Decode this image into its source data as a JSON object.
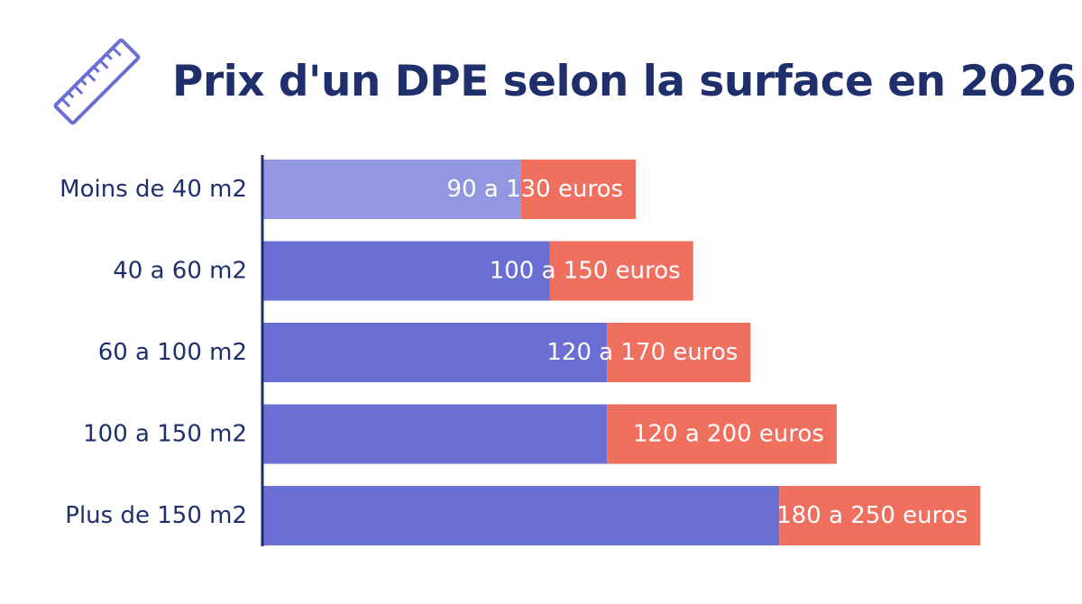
{
  "title": "Prix d'un DPE selon la surface en 2026",
  "icon": "ruler-icon",
  "colors": {
    "title": "#1f2f6b",
    "axis": "#1f2f6b",
    "label": "#1f2f6b",
    "min_bar": "#6b6fd4",
    "min_bar_first": "#9397e0",
    "range_bar": "#f07060",
    "value_text": "#ffffff"
  },
  "chart_data": {
    "type": "bar",
    "orientation": "horizontal",
    "stacked": true,
    "xlim": [
      0,
      265
    ],
    "categories": [
      "Moins de 40 m2",
      "40 a 60 m2",
      "60 a 100 m2",
      "100 a 150 m2",
      "Plus de 150 m2"
    ],
    "series": [
      {
        "values": [
          90,
          100,
          120,
          120,
          180
        ]
      },
      {
        "values": [
          40,
          50,
          50,
          80,
          70
        ]
      }
    ],
    "data_labels": [
      "90 a 130 euros",
      "100 a 150 euros",
      "120 a 170 euros",
      "120 a 200 euros",
      "180 a 250 euros"
    ]
  }
}
